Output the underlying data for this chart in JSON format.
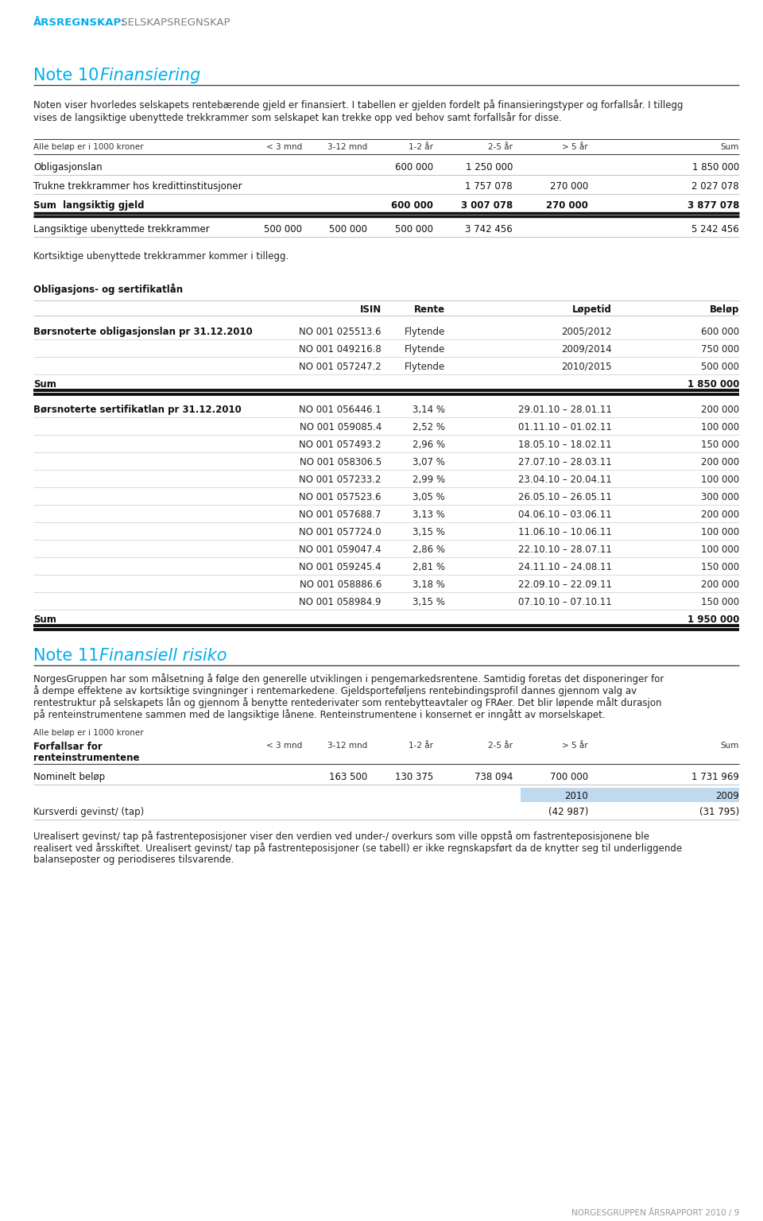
{
  "page_bg": "#ffffff",
  "header_label": "ÅRSREGNSKAP:",
  "header_label_color": "#00AEEF",
  "header_sublabel": " SELSKAPSREGNSKAP",
  "header_sublabel_color": "#808080",
  "note10_color": "#00AEEF",
  "note11_color": "#00AEEF",
  "intro_text_line1": "Noten viser hvorledes selskapets rentebærende gjeld er finansiert. I tabellen er gjelden fordelt på finansieringstyper og forfallsår. I tillegg",
  "intro_text_line2": "vises de langsiktige ubenyttede trekkrammer som selskapet kan trekke opp ved behov samt forfallsår for disse.",
  "table1_col_header": [
    "Alle beløp er i 1000 kroner",
    "< 3 mnd",
    "3-12 mnd",
    "1-2 år",
    "2-5 år",
    "> 5 år",
    "Sum"
  ],
  "t1_row1_label": "Obligasjonslan",
  "t1_row1_vals": [
    "",
    "",
    "600 000",
    "1 250 000",
    "",
    "1 850 000"
  ],
  "t1_row2_label": "Trukne trekkrammer hos kredittinstitusjoner",
  "t1_row2_vals": [
    "",
    "",
    "",
    "1 757 078",
    "270 000",
    "2 027 078"
  ],
  "t1_row3_label": "Sum  langsiktig gjeld",
  "t1_row3_vals": [
    "",
    "",
    "600 000",
    "3 007 078",
    "270 000",
    "3 877 078"
  ],
  "t1_row4_label": "Langsiktige ubenyttede trekkrammer",
  "t1_row4_vals": [
    "500 000",
    "500 000",
    "500 000",
    "3 742 456",
    "",
    "5 242 456"
  ],
  "kortsiktig_text": "Kortsiktige ubenyttede trekkrammer kommer i tillegg.",
  "oblig_title": "Obligasjons- og sertifikatlån",
  "t2_col_header": [
    "ISIN",
    "Rente",
    "Løpetid",
    "Beløp"
  ],
  "t2_oblig_label": "Børsnoterte obligasjonslan pr 31.12.2010",
  "t2_oblig_rows": [
    [
      "NO 001 025513.6",
      "Flytende",
      "2005/2012",
      "600 000"
    ],
    [
      "NO 001 049216.8",
      "Flytende",
      "2009/2014",
      "750 000"
    ],
    [
      "NO 001 057247.2",
      "Flytende",
      "2010/2015",
      "500 000"
    ]
  ],
  "t2_oblig_sum": "1 850 000",
  "t2_sertifikat_label": "Børsnoterte sertifikatlan pr 31.12.2010",
  "t2_sertifikat_rows": [
    [
      "NO 001 056446.1",
      "3,14 %",
      "29.01.10 – 28.01.11",
      "200 000"
    ],
    [
      "NO 001 059085.4",
      "2,52 %",
      "01.11.10 – 01.02.11",
      "100 000"
    ],
    [
      "NO 001 057493.2",
      "2,96 %",
      "18.05.10 – 18.02.11",
      "150 000"
    ],
    [
      "NO 001 058306.5",
      "3,07 %",
      "27.07.10 – 28.03.11",
      "200 000"
    ],
    [
      "NO 001 057233.2",
      "2,99 %",
      "23.04.10 – 20.04.11",
      "100 000"
    ],
    [
      "NO 001 057523.6",
      "3,05 %",
      "26.05.10 – 26.05.11",
      "300 000"
    ],
    [
      "NO 001 057688.7",
      "3,13 %",
      "04.06.10 – 03.06.11",
      "200 000"
    ],
    [
      "NO 001 057724.0",
      "3,15 %",
      "11.06.10 – 10.06.11",
      "100 000"
    ],
    [
      "NO 001 059047.4",
      "2,86 %",
      "22.10.10 – 28.07.11",
      "100 000"
    ],
    [
      "NO 001 059245.4",
      "2,81 %",
      "24.11.10 – 24.08.11",
      "150 000"
    ],
    [
      "NO 001 058886.6",
      "3,18 %",
      "22.09.10 – 22.09.11",
      "200 000"
    ],
    [
      "NO 001 058984.9",
      "3,15 %",
      "07.10.10 – 07.10.11",
      "150 000"
    ]
  ],
  "t2_sertifikat_sum": "1 950 000",
  "note11_text1": "NorgesGruppen har som målsetning å følge den generelle utviklingen i pengemarkedsrentene. Samtidig foretas det disponeringer for",
  "note11_text2": "å dempe effektene av kortsiktige svingninger i rentemarkedene. Gjeldsporteføljens rentebindingsprofil dannes gjennom valg av",
  "note11_text3": "rentestruktur på selskapets lån og gjennom å benytte rentederivater som rentebytteavtaler og FRAer. Det blir løpende målt durasjon",
  "note11_text4": "på renteinstrumentene sammen med de langsiktige lånene. Renteinstrumentene i konsernet er inngått av morselskapet.",
  "t3_label_header": "Alle beløp er i 1000 kroner",
  "t3_subheader": "Forfallsar for\nrenteinstrumentene",
  "t3_cols": [
    "< 3 mnd",
    "3-12 mnd",
    "1-2 år",
    "2-5 år",
    "> 5 år",
    "Sum"
  ],
  "t3_row1_label": "Nominelt beløp",
  "t3_row1_vals": [
    "",
    "163 500",
    "130 375",
    "738 094",
    "700 000",
    "1 731 969"
  ],
  "t3_year_2010": "2010",
  "t3_year_2009": "2009",
  "t3_kursverdi_label": "Kursverdi gevinst/ (tap)",
  "t3_kursverdi_2010": "(42 987)",
  "t3_kursverdi_2009": "(31 795)",
  "note11_text5": "Urealisert gevinst/ tap på fastrenteposisjoner viser den verdien ved under-/ overkurs som ville oppstå om fastrenteposisjonene ble",
  "note11_text6": "realisert ved årsskiftet. Urealisert gevinst/ tap på fastrenteposisjoner (se tabell) er ikke regnskapsført da de knytter seg til underliggende",
  "note11_text7": "balanseposter og periodiseres tilsvarende.",
  "footer_text": "NORGESGRUPPEN ÅRSRAPPORT 2010 / 9",
  "footer_color": "#999999"
}
